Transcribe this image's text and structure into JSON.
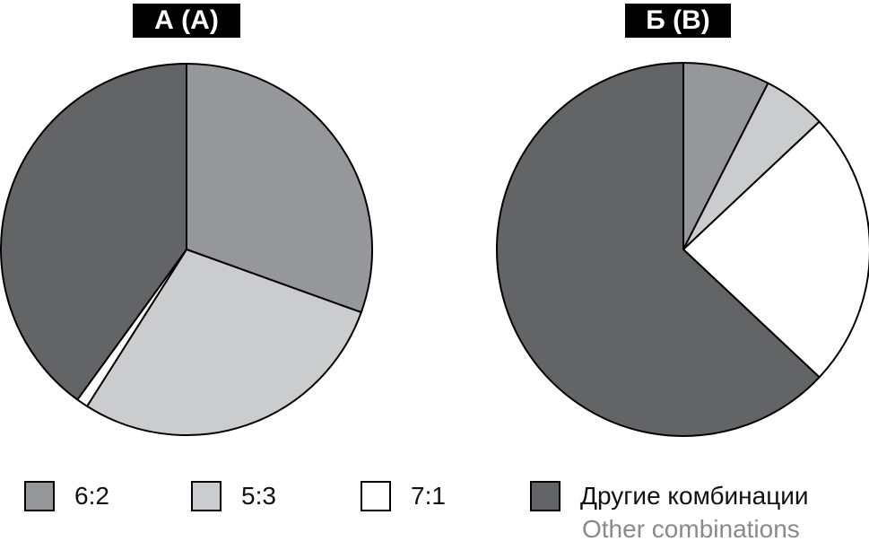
{
  "chart_data": [
    {
      "type": "pie",
      "title": "А (A)",
      "series": [
        {
          "category_index": 0,
          "value": 30.5
        },
        {
          "category_index": 1,
          "value": 28.5
        },
        {
          "category_index": 2,
          "value": 1.0
        },
        {
          "category_index": 3,
          "value": 40.0
        }
      ]
    },
    {
      "type": "pie",
      "title": "Б (B)",
      "series": [
        {
          "category_index": 0,
          "value": 7.5
        },
        {
          "category_index": 1,
          "value": 5.5
        },
        {
          "category_index": 2,
          "value": 24.0
        },
        {
          "category_index": 3,
          "value": 63.0
        }
      ]
    }
  ],
  "legend": [
    {
      "label": "6:2",
      "color": "#96979b"
    },
    {
      "label": "5:3",
      "color": "#cbcccd"
    },
    {
      "label": "7:1",
      "color": "#ffffff"
    },
    {
      "label": "Другие комбинации",
      "sublabel": "Other combinations",
      "color": "#636466"
    }
  ]
}
